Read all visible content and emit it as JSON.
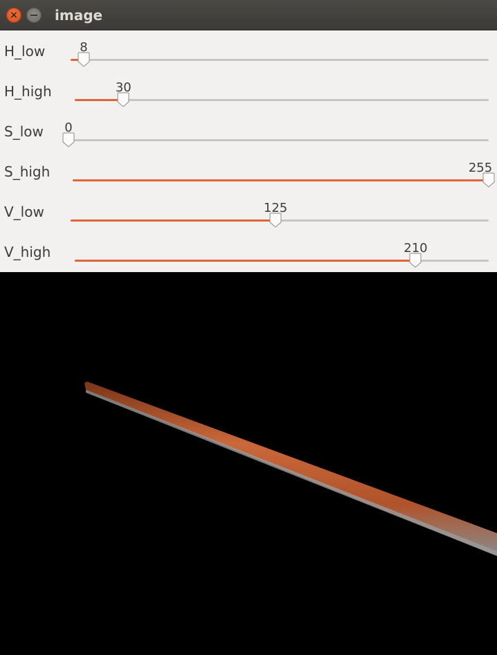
{
  "window": {
    "title": "image",
    "close_icon": "close-icon",
    "minimize_icon": "minimize-icon"
  },
  "trackbars": [
    {
      "label": "H_low",
      "value": "8",
      "fraction": 0.0314
    },
    {
      "label": "H_high",
      "value": "30",
      "fraction": 0.1176
    },
    {
      "label": "S_low",
      "value": "0",
      "fraction": 0.0
    },
    {
      "label": "S_high",
      "value": "255",
      "fraction": 1.0
    },
    {
      "label": "V_low",
      "value": "125",
      "fraction": 0.4902
    },
    {
      "label": "V_high",
      "value": "210",
      "fraction": 0.8235
    }
  ],
  "colors": {
    "accent": "#e0643a",
    "track": "#c8c6c3",
    "panel": "#f2f1f0",
    "titlebar": "#3f3e3a",
    "canvas": "#000000",
    "stick": "#b8562a"
  }
}
